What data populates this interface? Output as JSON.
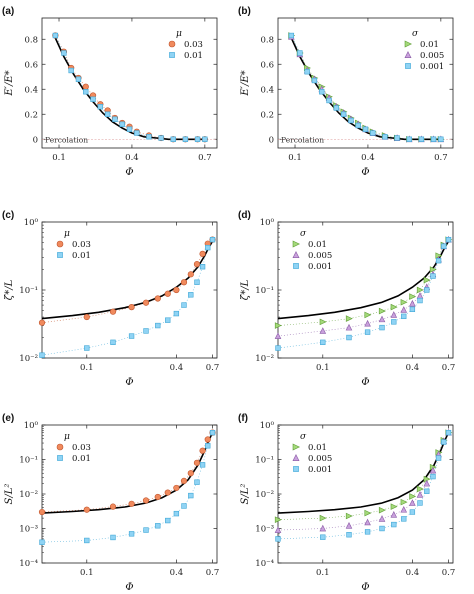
{
  "colors": {
    "orange": "#f08a5d",
    "orange_edge": "#c0542c",
    "blue": "#8fd3f4",
    "blue_edge": "#3ea7d6",
    "green": "#a4d97a",
    "green_edge": "#5f9e36",
    "purple": "#c9a0dc",
    "purple_edge": "#8a5ba6",
    "theory": "#000000"
  },
  "chart_data": [
    {
      "id": "a",
      "panel_label": "(a)",
      "type": "scatter",
      "xscale": "linear",
      "yscale": "linear",
      "xlim": [
        0.03,
        0.75
      ],
      "ylim": [
        -0.07,
        0.97
      ],
      "xticks": [
        0.1,
        0.4,
        0.7
      ],
      "xtick_labels": [
        "0.1",
        "0.4",
        "0.7"
      ],
      "yticks": [
        0,
        0.2,
        0.4,
        0.6,
        0.8
      ],
      "ytick_labels": [
        "0",
        "0.2",
        "0.4",
        "0.6",
        "0.8"
      ],
      "xlabel": "Φ",
      "ylabel": "E′/E*",
      "annotation": "Percolation",
      "legend": {
        "title": "μ",
        "position": "top-right"
      },
      "theory": {
        "x": [
          0.08,
          0.12,
          0.16,
          0.2,
          0.24,
          0.28,
          0.32,
          0.36,
          0.4,
          0.45,
          0.5,
          0.55,
          0.6,
          0.65,
          0.7
        ],
        "y": [
          0.83,
          0.66,
          0.52,
          0.4,
          0.3,
          0.21,
          0.14,
          0.09,
          0.05,
          0.02,
          0.01,
          0.0,
          0.0,
          0.0,
          0.0
        ]
      },
      "series": [
        {
          "name": "0.03",
          "marker": "circle",
          "color": "orange",
          "x": [
            0.085,
            0.12,
            0.15,
            0.18,
            0.21,
            0.24,
            0.27,
            0.3,
            0.33,
            0.36,
            0.39,
            0.42,
            0.47,
            0.52,
            0.57,
            0.62,
            0.67,
            0.7
          ],
          "y": [
            0.83,
            0.7,
            0.57,
            0.49,
            0.42,
            0.35,
            0.28,
            0.23,
            0.17,
            0.13,
            0.1,
            0.06,
            0.03,
            0.01,
            0.0,
            0.0,
            0.0,
            0.0
          ]
        },
        {
          "name": "0.01",
          "marker": "square",
          "color": "blue",
          "x": [
            0.085,
            0.12,
            0.15,
            0.18,
            0.21,
            0.24,
            0.27,
            0.3,
            0.33,
            0.36,
            0.39,
            0.42,
            0.47,
            0.52,
            0.57,
            0.62,
            0.67,
            0.7
          ],
          "y": [
            0.83,
            0.69,
            0.55,
            0.48,
            0.38,
            0.32,
            0.26,
            0.2,
            0.16,
            0.12,
            0.08,
            0.05,
            0.02,
            0.01,
            0.0,
            0.0,
            0.0,
            0.0
          ]
        }
      ]
    },
    {
      "id": "b",
      "panel_label": "(b)",
      "type": "scatter",
      "xscale": "linear",
      "yscale": "linear",
      "xlim": [
        0.03,
        0.75
      ],
      "ylim": [
        -0.07,
        0.97
      ],
      "xticks": [
        0.1,
        0.4,
        0.7
      ],
      "xtick_labels": [
        "0.1",
        "0.4",
        "0.7"
      ],
      "yticks": [
        0,
        0.2,
        0.4,
        0.6,
        0.8
      ],
      "ytick_labels": [
        "0",
        "0.2",
        "0.4",
        "0.6",
        "0.8"
      ],
      "xlabel": "Φ",
      "ylabel": "E′/E*",
      "annotation": "Percolation",
      "legend": {
        "title": "σ",
        "position": "top-right"
      },
      "theory": {
        "x": [
          0.08,
          0.12,
          0.16,
          0.2,
          0.24,
          0.28,
          0.32,
          0.36,
          0.4,
          0.45,
          0.5,
          0.55,
          0.6,
          0.65,
          0.7
        ],
        "y": [
          0.83,
          0.66,
          0.52,
          0.4,
          0.3,
          0.21,
          0.14,
          0.09,
          0.05,
          0.02,
          0.01,
          0.0,
          0.0,
          0.0,
          0.0
        ]
      },
      "series": [
        {
          "name": "0.01",
          "marker": "triangle-right",
          "color": "green",
          "x": [
            0.085,
            0.12,
            0.15,
            0.18,
            0.21,
            0.24,
            0.27,
            0.3,
            0.33,
            0.36,
            0.39,
            0.42,
            0.47,
            0.52,
            0.57,
            0.62,
            0.67,
            0.7
          ],
          "y": [
            0.83,
            0.69,
            0.57,
            0.49,
            0.42,
            0.34,
            0.27,
            0.22,
            0.17,
            0.13,
            0.09,
            0.06,
            0.03,
            0.01,
            0.0,
            0.0,
            0.0,
            0.0
          ]
        },
        {
          "name": "0.005",
          "marker": "triangle-up",
          "color": "purple",
          "x": [
            0.085,
            0.12,
            0.15,
            0.18,
            0.21,
            0.24,
            0.27,
            0.3,
            0.33,
            0.36,
            0.39,
            0.42,
            0.47,
            0.52,
            0.57,
            0.62,
            0.67,
            0.7
          ],
          "y": [
            0.82,
            0.68,
            0.55,
            0.48,
            0.4,
            0.33,
            0.26,
            0.21,
            0.16,
            0.12,
            0.08,
            0.05,
            0.02,
            0.01,
            0.0,
            0.0,
            0.0,
            0.0
          ]
        },
        {
          "name": "0.001",
          "marker": "square",
          "color": "blue",
          "x": [
            0.085,
            0.12,
            0.15,
            0.18,
            0.21,
            0.24,
            0.27,
            0.3,
            0.33,
            0.36,
            0.39,
            0.42,
            0.47,
            0.52,
            0.57,
            0.62,
            0.67,
            0.7
          ],
          "y": [
            0.83,
            0.69,
            0.54,
            0.47,
            0.38,
            0.31,
            0.25,
            0.2,
            0.15,
            0.11,
            0.08,
            0.05,
            0.02,
            0.01,
            0.0,
            0.0,
            0.0,
            0.0
          ]
        }
      ]
    },
    {
      "id": "c",
      "panel_label": "(c)",
      "type": "scatter",
      "xscale": "log",
      "yscale": "log",
      "xlim": [
        0.05,
        0.75
      ],
      "ylim": [
        0.01,
        1
      ],
      "xticks": [
        0.1,
        0.4,
        0.7
      ],
      "xtick_labels": [
        "0.1",
        "0.4",
        "0.7"
      ],
      "yticks": [
        0.01,
        0.1,
        1
      ],
      "ytick_labels": [
        "10⁻²",
        "10⁻¹",
        "10⁰"
      ],
      "xlabel": "Φ",
      "ylabel": "ζ*/L",
      "legend": {
        "title": "μ",
        "position": "top-left"
      },
      "theory": {
        "x": [
          0.05,
          0.08,
          0.12,
          0.18,
          0.25,
          0.32,
          0.4,
          0.48,
          0.56,
          0.62,
          0.66,
          0.7
        ],
        "y": [
          0.038,
          0.042,
          0.047,
          0.055,
          0.066,
          0.082,
          0.11,
          0.15,
          0.22,
          0.32,
          0.42,
          0.52
        ]
      },
      "series": [
        {
          "name": "0.03",
          "marker": "circle",
          "color": "orange",
          "x": [
            0.05,
            0.1,
            0.15,
            0.2,
            0.25,
            0.3,
            0.35,
            0.4,
            0.45,
            0.5,
            0.55,
            0.6,
            0.65,
            0.7
          ],
          "y": [
            0.033,
            0.04,
            0.048,
            0.056,
            0.065,
            0.075,
            0.088,
            0.1,
            0.13,
            0.17,
            0.24,
            0.34,
            0.48,
            0.55
          ]
        },
        {
          "name": "0.01",
          "marker": "square",
          "color": "blue",
          "x": [
            0.05,
            0.1,
            0.15,
            0.2,
            0.25,
            0.3,
            0.35,
            0.4,
            0.45,
            0.5,
            0.55,
            0.6,
            0.65,
            0.7
          ],
          "y": [
            0.011,
            0.014,
            0.017,
            0.021,
            0.025,
            0.03,
            0.036,
            0.045,
            0.06,
            0.085,
            0.13,
            0.22,
            0.42,
            0.55
          ]
        }
      ]
    },
    {
      "id": "d",
      "panel_label": "(d)",
      "type": "scatter",
      "xscale": "log",
      "yscale": "log",
      "xlim": [
        0.05,
        0.75
      ],
      "ylim": [
        0.01,
        1
      ],
      "xticks": [
        0.1,
        0.4,
        0.7
      ],
      "xtick_labels": [
        "0.1",
        "0.4",
        "0.7"
      ],
      "yticks": [
        0.01,
        0.1,
        1
      ],
      "ytick_labels": [
        "10⁻²",
        "10⁻¹",
        "10⁰"
      ],
      "xlabel": "Φ",
      "ylabel": "ζ*/L",
      "legend": {
        "title": "σ",
        "position": "top-left"
      },
      "theory": {
        "x": [
          0.05,
          0.08,
          0.12,
          0.18,
          0.25,
          0.32,
          0.4,
          0.48,
          0.56,
          0.62,
          0.66,
          0.7
        ],
        "y": [
          0.038,
          0.042,
          0.047,
          0.055,
          0.066,
          0.082,
          0.11,
          0.15,
          0.22,
          0.32,
          0.42,
          0.52
        ]
      },
      "series": [
        {
          "name": "0.01",
          "marker": "triangle-right",
          "color": "green",
          "x": [
            0.05,
            0.1,
            0.15,
            0.2,
            0.25,
            0.3,
            0.35,
            0.4,
            0.45,
            0.5,
            0.55,
            0.6,
            0.65,
            0.7
          ],
          "y": [
            0.03,
            0.034,
            0.038,
            0.043,
            0.049,
            0.056,
            0.066,
            0.08,
            0.1,
            0.14,
            0.2,
            0.32,
            0.46,
            0.55
          ]
        },
        {
          "name": "0.005",
          "marker": "triangle-up",
          "color": "purple",
          "x": [
            0.05,
            0.1,
            0.15,
            0.2,
            0.25,
            0.3,
            0.35,
            0.4,
            0.45,
            0.5,
            0.55,
            0.6,
            0.65,
            0.7
          ],
          "y": [
            0.021,
            0.025,
            0.028,
            0.032,
            0.037,
            0.043,
            0.051,
            0.063,
            0.082,
            0.11,
            0.17,
            0.28,
            0.44,
            0.55
          ]
        },
        {
          "name": "0.001",
          "marker": "square",
          "color": "blue",
          "x": [
            0.05,
            0.1,
            0.15,
            0.2,
            0.25,
            0.3,
            0.35,
            0.4,
            0.45,
            0.5,
            0.55,
            0.6,
            0.65,
            0.7
          ],
          "y": [
            0.014,
            0.017,
            0.02,
            0.024,
            0.028,
            0.034,
            0.041,
            0.052,
            0.07,
            0.1,
            0.16,
            0.27,
            0.44,
            0.55
          ]
        }
      ]
    },
    {
      "id": "e",
      "panel_label": "(e)",
      "type": "scatter",
      "xscale": "log",
      "yscale": "log",
      "xlim": [
        0.05,
        0.75
      ],
      "ylim": [
        0.0001,
        1
      ],
      "xticks": [
        0.1,
        0.4,
        0.7
      ],
      "xtick_labels": [
        "0.1",
        "0.4",
        "0.7"
      ],
      "yticks": [
        0.0001,
        0.001,
        0.01,
        0.1,
        1
      ],
      "ytick_labels": [
        "10⁻⁴",
        "10⁻³",
        "10⁻²",
        "10⁻¹",
        "10⁰"
      ],
      "xlabel": "Φ",
      "ylabel": "S/L²",
      "legend": {
        "title": "μ",
        "position": "top-left"
      },
      "theory": {
        "x": [
          0.05,
          0.08,
          0.12,
          0.18,
          0.25,
          0.32,
          0.4,
          0.48,
          0.56,
          0.62,
          0.66,
          0.7
        ],
        "y": [
          0.0028,
          0.0031,
          0.0035,
          0.0042,
          0.0055,
          0.0078,
          0.013,
          0.026,
          0.07,
          0.18,
          0.35,
          0.6
        ]
      },
      "series": [
        {
          "name": "0.03",
          "marker": "circle",
          "color": "orange",
          "x": [
            0.05,
            0.1,
            0.15,
            0.2,
            0.25,
            0.3,
            0.35,
            0.4,
            0.45,
            0.5,
            0.55,
            0.6,
            0.65,
            0.7
          ],
          "y": [
            0.003,
            0.0035,
            0.0043,
            0.0052,
            0.0065,
            0.0082,
            0.011,
            0.015,
            0.024,
            0.04,
            0.08,
            0.18,
            0.38,
            0.6
          ]
        },
        {
          "name": "0.01",
          "marker": "square",
          "color": "blue",
          "x": [
            0.05,
            0.1,
            0.15,
            0.2,
            0.25,
            0.3,
            0.35,
            0.4,
            0.45,
            0.5,
            0.55,
            0.6,
            0.65,
            0.7
          ],
          "y": [
            0.0004,
            0.00045,
            0.00055,
            0.0007,
            0.0009,
            0.0012,
            0.0017,
            0.0027,
            0.0045,
            0.009,
            0.022,
            0.07,
            0.25,
            0.6
          ]
        }
      ]
    },
    {
      "id": "f",
      "panel_label": "(f)",
      "type": "scatter",
      "xscale": "log",
      "yscale": "log",
      "xlim": [
        0.05,
        0.75
      ],
      "ylim": [
        0.0001,
        1
      ],
      "xticks": [
        0.1,
        0.4,
        0.7
      ],
      "xtick_labels": [
        "0.1",
        "0.4",
        "0.7"
      ],
      "yticks": [
        0.0001,
        0.001,
        0.01,
        0.1,
        1
      ],
      "ytick_labels": [
        "10⁻⁴",
        "10⁻³",
        "10⁻²",
        "10⁻¹",
        "10⁰"
      ],
      "xlabel": "Φ",
      "ylabel": "S/L²",
      "legend": {
        "title": "σ",
        "position": "top-left"
      },
      "theory": {
        "x": [
          0.05,
          0.08,
          0.12,
          0.18,
          0.25,
          0.32,
          0.4,
          0.48,
          0.56,
          0.62,
          0.66,
          0.7
        ],
        "y": [
          0.0028,
          0.0031,
          0.0035,
          0.0042,
          0.0055,
          0.0078,
          0.013,
          0.026,
          0.07,
          0.18,
          0.35,
          0.6
        ]
      },
      "series": [
        {
          "name": "0.01",
          "marker": "triangle-right",
          "color": "green",
          "x": [
            0.05,
            0.1,
            0.15,
            0.2,
            0.25,
            0.3,
            0.35,
            0.4,
            0.45,
            0.5,
            0.55,
            0.6,
            0.65,
            0.7
          ],
          "y": [
            0.0018,
            0.002,
            0.0023,
            0.0028,
            0.0034,
            0.0043,
            0.0058,
            0.0085,
            0.014,
            0.027,
            0.06,
            0.16,
            0.36,
            0.6
          ]
        },
        {
          "name": "0.005",
          "marker": "triangle-up",
          "color": "purple",
          "x": [
            0.05,
            0.1,
            0.15,
            0.2,
            0.25,
            0.3,
            0.35,
            0.4,
            0.45,
            0.5,
            0.55,
            0.6,
            0.65,
            0.7
          ],
          "y": [
            0.0009,
            0.001,
            0.0012,
            0.0015,
            0.0019,
            0.0025,
            0.0035,
            0.0055,
            0.0095,
            0.02,
            0.048,
            0.14,
            0.34,
            0.6
          ]
        },
        {
          "name": "0.001",
          "marker": "square",
          "color": "blue",
          "x": [
            0.05,
            0.1,
            0.15,
            0.2,
            0.25,
            0.3,
            0.35,
            0.4,
            0.45,
            0.5,
            0.55,
            0.6,
            0.65,
            0.7
          ],
          "y": [
            0.0005,
            0.00056,
            0.00066,
            0.0008,
            0.001,
            0.0013,
            0.0019,
            0.003,
            0.0055,
            0.012,
            0.032,
            0.11,
            0.32,
            0.6
          ]
        }
      ]
    }
  ]
}
